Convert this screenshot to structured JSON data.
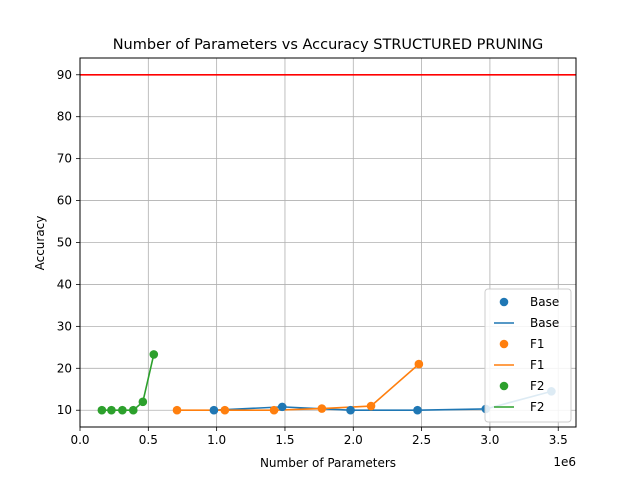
{
  "chart_data": {
    "type": "scatter",
    "title": "Number of Parameters vs Accuracy STRUCTURED PRUNING",
    "xlabel": "Number of Parameters",
    "ylabel": "Accuracy",
    "x_offset_label": "1e6",
    "xlim": [
      0,
      3630000
    ],
    "ylim": [
      6,
      94
    ],
    "x_ticks": [
      0,
      500000,
      1000000,
      1500000,
      2000000,
      2500000,
      3000000,
      3500000
    ],
    "x_tick_labels": [
      "0.0",
      "0.5",
      "1.0",
      "1.5",
      "2.0",
      "2.5",
      "3.0",
      "3.5"
    ],
    "y_ticks": [
      10,
      20,
      30,
      40,
      50,
      60,
      70,
      80,
      90
    ],
    "y_tick_labels": [
      "10",
      "20",
      "30",
      "40",
      "50",
      "60",
      "70",
      "80",
      "90"
    ],
    "grid": true,
    "legend_position": "bottom-right",
    "reference_line": {
      "y": 90,
      "color": "#ff0000"
    },
    "series": [
      {
        "name": "Base",
        "color": "#1f77b4",
        "x": [
          980000,
          1480000,
          1980000,
          2470000,
          2970000,
          3450000
        ],
        "y": [
          10.0,
          10.8,
          10.0,
          10.0,
          10.3,
          14.5
        ]
      },
      {
        "name": "F1",
        "color": "#ff7f0e",
        "x": [
          710000,
          1060000,
          1420000,
          1770000,
          2130000,
          2480000
        ],
        "y": [
          10.0,
          10.0,
          10.0,
          10.4,
          11.0,
          21.0
        ]
      },
      {
        "name": "F2",
        "color": "#2ca02c",
        "x": [
          160000,
          230000,
          310000,
          390000,
          460000,
          540000
        ],
        "y": [
          10.0,
          10.0,
          10.0,
          10.0,
          12.0,
          23.3
        ]
      }
    ]
  }
}
